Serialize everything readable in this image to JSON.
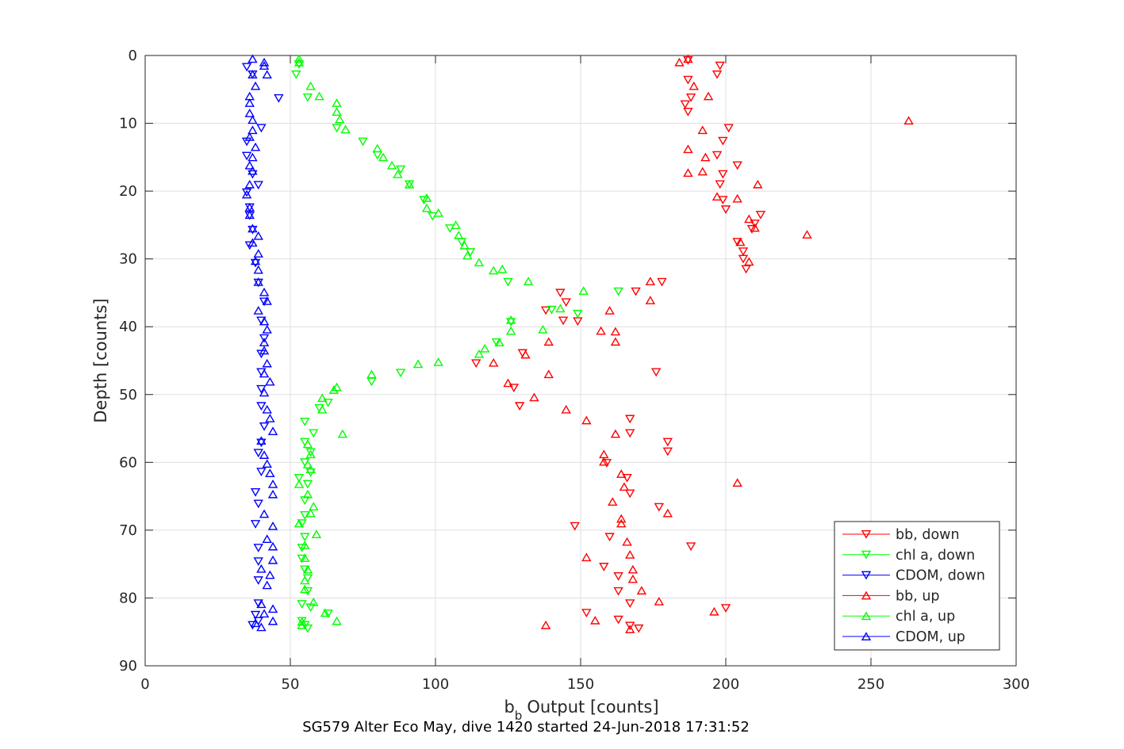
{
  "chart_data": {
    "type": "scatter",
    "xlabel": "Output [counts]",
    "xlabel_prefix": "b",
    "xlabel_subscript": "b",
    "ylabel": "Depth [counts]",
    "caption": "SG579 Alter Eco May, dive 1420 started 24-Jun-2018 17:31:52",
    "xlim": [
      0,
      300
    ],
    "ylim": [
      0,
      90
    ],
    "y_reversed": true,
    "grid": true,
    "legend_position": "bottom-right",
    "xticks": [
      "0",
      "50",
      "100",
      "150",
      "200",
      "250",
      "300"
    ],
    "yticks": [
      "0",
      "10",
      "20",
      "30",
      "40",
      "50",
      "60",
      "70",
      "80",
      "90"
    ],
    "series": [
      {
        "name": "bb, down",
        "color": "#ff0000",
        "marker": "triangle-down",
        "points": [
          [
            187,
            0.7
          ],
          [
            198,
            1.5
          ],
          [
            197,
            2.8
          ],
          [
            187,
            3.6
          ],
          [
            188,
            6.2
          ],
          [
            186,
            7.2
          ],
          [
            187,
            8.3
          ],
          [
            201,
            10.7
          ],
          [
            199,
            12.6
          ],
          [
            197,
            14.7
          ],
          [
            204,
            16.2
          ],
          [
            199,
            17.5
          ],
          [
            198,
            19.0
          ],
          [
            199,
            21.3
          ],
          [
            200,
            22.7
          ],
          [
            212,
            23.5
          ],
          [
            210,
            24.8
          ],
          [
            209,
            25.6
          ],
          [
            204,
            27.5
          ],
          [
            206,
            28.9
          ],
          [
            206,
            30.0
          ],
          [
            207,
            31.5
          ],
          [
            178,
            33.4
          ],
          [
            169,
            34.8
          ],
          [
            143,
            35.0
          ],
          [
            145,
            36.4
          ],
          [
            138,
            37.6
          ],
          [
            149,
            39.2
          ],
          [
            144,
            39.1
          ],
          [
            130,
            43.9
          ],
          [
            114,
            45.4
          ],
          [
            176,
            46.7
          ],
          [
            127,
            49.0
          ],
          [
            129,
            51.7
          ],
          [
            167,
            53.6
          ],
          [
            167,
            55.7
          ],
          [
            180,
            57.0
          ],
          [
            180,
            58.4
          ],
          [
            159,
            60.1
          ],
          [
            166,
            62.3
          ],
          [
            167,
            64.6
          ],
          [
            177,
            66.6
          ],
          [
            148,
            69.4
          ],
          [
            160,
            71.0
          ],
          [
            188,
            72.4
          ],
          [
            158,
            75.4
          ],
          [
            163,
            76.8
          ],
          [
            163,
            79.0
          ],
          [
            167,
            80.8
          ],
          [
            200,
            81.5
          ],
          [
            152,
            82.2
          ],
          [
            163,
            83.2
          ],
          [
            167,
            84.1
          ],
          [
            170,
            84.5
          ]
        ]
      },
      {
        "name": "chl a, down",
        "color": "#00ff00",
        "marker": "triangle-down",
        "points": [
          [
            53,
            1.3
          ],
          [
            52,
            2.8
          ],
          [
            56,
            6.2
          ],
          [
            66,
            10.7
          ],
          [
            75,
            12.7
          ],
          [
            80,
            14.7
          ],
          [
            88,
            16.8
          ],
          [
            91,
            19.0
          ],
          [
            96,
            21.3
          ],
          [
            99,
            23.7
          ],
          [
            105,
            25.5
          ],
          [
            109,
            27.5
          ],
          [
            112,
            29.0
          ],
          [
            125,
            33.4
          ],
          [
            163,
            34.8
          ],
          [
            140,
            37.5
          ],
          [
            149,
            38.1
          ],
          [
            126,
            39.3
          ],
          [
            121,
            42.3
          ],
          [
            88,
            46.8
          ],
          [
            78,
            48.1
          ],
          [
            63,
            51.2
          ],
          [
            60,
            52.0
          ],
          [
            55,
            54.0
          ],
          [
            58,
            55.7
          ],
          [
            55,
            57.0
          ],
          [
            57,
            58.5
          ],
          [
            55,
            60.0
          ],
          [
            57,
            61.5
          ],
          [
            53,
            62.3
          ],
          [
            56,
            63.2
          ],
          [
            55,
            65.6
          ],
          [
            55,
            67.8
          ],
          [
            54,
            69.0
          ],
          [
            55,
            71.0
          ],
          [
            54,
            72.6
          ],
          [
            54,
            74.2
          ],
          [
            55,
            75.8
          ],
          [
            56,
            77.1
          ],
          [
            56,
            79.0
          ],
          [
            54,
            80.9
          ],
          [
            57,
            81.4
          ],
          [
            63,
            82.3
          ],
          [
            54,
            83.4
          ],
          [
            55,
            84.0
          ],
          [
            56,
            84.5
          ]
        ]
      },
      {
        "name": "CDOM, down",
        "color": "#0000ff",
        "marker": "triangle-down",
        "points": [
          [
            35,
            1.7
          ],
          [
            37,
            2.8
          ],
          [
            46,
            6.3
          ],
          [
            40,
            10.7
          ],
          [
            35,
            12.7
          ],
          [
            35,
            14.8
          ],
          [
            37,
            17.5
          ],
          [
            39,
            19.1
          ],
          [
            35,
            20.2
          ],
          [
            36,
            22.4
          ],
          [
            36,
            23.6
          ],
          [
            37,
            25.7
          ],
          [
            36,
            28.0
          ],
          [
            38,
            30.6
          ],
          [
            39,
            33.5
          ],
          [
            41,
            36.3
          ],
          [
            40,
            39.1
          ],
          [
            41,
            41.7
          ],
          [
            40,
            44.0
          ],
          [
            40,
            46.7
          ],
          [
            40,
            49.2
          ],
          [
            40,
            51.7
          ],
          [
            41,
            54.7
          ],
          [
            40,
            57.1
          ],
          [
            39,
            58.6
          ],
          [
            40,
            61.4
          ],
          [
            38,
            64.4
          ],
          [
            39,
            66.1
          ],
          [
            38,
            69.1
          ],
          [
            39,
            72.6
          ],
          [
            39,
            74.6
          ],
          [
            39,
            77.4
          ],
          [
            39,
            80.8
          ],
          [
            38,
            82.5
          ],
          [
            39,
            83.4
          ],
          [
            37,
            84.0
          ]
        ]
      },
      {
        "name": "bb, up",
        "color": "#ff0000",
        "marker": "triangle-up",
        "points": [
          [
            187,
            0.5
          ],
          [
            184,
            1.0
          ],
          [
            189,
            4.5
          ],
          [
            194,
            6.0
          ],
          [
            263,
            9.6
          ],
          [
            192,
            11.0
          ],
          [
            187,
            13.8
          ],
          [
            193,
            15.0
          ],
          [
            187,
            17.3
          ],
          [
            192,
            17.1
          ],
          [
            211,
            19.0
          ],
          [
            197,
            20.8
          ],
          [
            204,
            21.1
          ],
          [
            208,
            24.1
          ],
          [
            210,
            25.4
          ],
          [
            228,
            26.4
          ],
          [
            205,
            27.5
          ],
          [
            208,
            30.4
          ],
          [
            174,
            33.3
          ],
          [
            174,
            36.1
          ],
          [
            160,
            37.6
          ],
          [
            157,
            40.6
          ],
          [
            162,
            40.7
          ],
          [
            162,
            42.2
          ],
          [
            139,
            42.2
          ],
          [
            131,
            44.1
          ],
          [
            120,
            45.3
          ],
          [
            139,
            47.0
          ],
          [
            125,
            48.3
          ],
          [
            134,
            50.4
          ],
          [
            145,
            52.2
          ],
          [
            152,
            53.8
          ],
          [
            162,
            55.8
          ],
          [
            158,
            58.8
          ],
          [
            158,
            59.9
          ],
          [
            164,
            61.7
          ],
          [
            165,
            63.6
          ],
          [
            161,
            65.8
          ],
          [
            180,
            67.5
          ],
          [
            164,
            68.3
          ],
          [
            164,
            69.0
          ],
          [
            166,
            71.7
          ],
          [
            167,
            73.6
          ],
          [
            152,
            74.0
          ],
          [
            168,
            75.8
          ],
          [
            204,
            63.0
          ],
          [
            168,
            77.2
          ],
          [
            171,
            78.9
          ],
          [
            177,
            80.5
          ],
          [
            196,
            82.0
          ],
          [
            155,
            83.3
          ],
          [
            138,
            84.0
          ],
          [
            167,
            84.6
          ]
        ]
      },
      {
        "name": "chl a, up",
        "color": "#00ff00",
        "marker": "triangle-up",
        "points": [
          [
            53,
            0.5
          ],
          [
            53,
            1.0
          ],
          [
            57,
            4.5
          ],
          [
            60,
            6.0
          ],
          [
            66,
            7.0
          ],
          [
            66,
            8.3
          ],
          [
            67,
            9.4
          ],
          [
            69,
            10.9
          ],
          [
            80,
            13.7
          ],
          [
            82,
            15.0
          ],
          [
            85,
            16.2
          ],
          [
            87,
            17.5
          ],
          [
            91,
            19.0
          ],
          [
            97,
            21.0
          ],
          [
            97,
            22.5
          ],
          [
            101,
            23.2
          ],
          [
            107,
            25.0
          ],
          [
            108,
            26.5
          ],
          [
            110,
            28.0
          ],
          [
            111,
            29.5
          ],
          [
            115,
            30.5
          ],
          [
            123,
            31.5
          ],
          [
            120,
            31.7
          ],
          [
            132,
            33.3
          ],
          [
            151,
            34.7
          ],
          [
            143,
            37.3
          ],
          [
            126,
            39.0
          ],
          [
            137,
            40.4
          ],
          [
            126,
            40.6
          ],
          [
            122,
            42.3
          ],
          [
            117,
            43.2
          ],
          [
            115,
            44.0
          ],
          [
            101,
            45.2
          ],
          [
            94,
            45.5
          ],
          [
            78,
            47.0
          ],
          [
            66,
            48.9
          ],
          [
            65,
            49.3
          ],
          [
            61,
            50.5
          ],
          [
            61,
            52.2
          ],
          [
            68,
            55.8
          ],
          [
            56,
            57.3
          ],
          [
            57,
            58.8
          ],
          [
            56,
            60.3
          ],
          [
            57,
            61.0
          ],
          [
            53,
            63.2
          ],
          [
            56,
            64.7
          ],
          [
            58,
            66.5
          ],
          [
            57,
            67.5
          ],
          [
            53,
            69.0
          ],
          [
            59,
            70.6
          ],
          [
            55,
            72.2
          ],
          [
            55,
            74.1
          ],
          [
            56,
            75.8
          ],
          [
            55,
            77.4
          ],
          [
            55,
            78.7
          ],
          [
            58,
            80.6
          ],
          [
            62,
            82.2
          ],
          [
            66,
            83.4
          ],
          [
            54,
            83.5
          ],
          [
            54,
            84.0
          ]
        ]
      },
      {
        "name": "CDOM, up",
        "color": "#0000ff",
        "marker": "triangle-up",
        "points": [
          [
            37,
            0.5
          ],
          [
            41,
            1.0
          ],
          [
            41,
            1.5
          ],
          [
            37,
            2.8
          ],
          [
            42,
            2.8
          ],
          [
            38,
            4.5
          ],
          [
            36,
            6.0
          ],
          [
            36,
            7.0
          ],
          [
            36,
            8.5
          ],
          [
            37,
            9.5
          ],
          [
            37,
            11.0
          ],
          [
            36,
            12.0
          ],
          [
            38,
            13.5
          ],
          [
            37,
            15.0
          ],
          [
            36,
            16.2
          ],
          [
            37,
            17.0
          ],
          [
            36,
            19.0
          ],
          [
            35,
            20.5
          ],
          [
            36,
            22.4
          ],
          [
            36,
            23.5
          ],
          [
            37,
            25.5
          ],
          [
            39,
            26.6
          ],
          [
            37,
            27.6
          ],
          [
            39,
            29.2
          ],
          [
            38,
            30.3
          ],
          [
            39,
            31.6
          ],
          [
            39,
            33.4
          ],
          [
            41,
            34.9
          ],
          [
            42,
            36.2
          ],
          [
            39,
            37.6
          ],
          [
            41,
            39.2
          ],
          [
            42,
            40.4
          ],
          [
            41,
            42.3
          ],
          [
            41,
            43.5
          ],
          [
            42,
            45.4
          ],
          [
            41,
            46.9
          ],
          [
            43,
            48.1
          ],
          [
            41,
            49.7
          ],
          [
            42,
            52.2
          ],
          [
            43,
            53.5
          ],
          [
            44,
            55.4
          ],
          [
            40,
            56.8
          ],
          [
            41,
            58.9
          ],
          [
            42,
            60.2
          ],
          [
            43,
            61.6
          ],
          [
            44,
            63.2
          ],
          [
            44,
            64.7
          ],
          [
            41,
            67.6
          ],
          [
            44,
            69.4
          ],
          [
            42,
            71.3
          ],
          [
            44,
            72.4
          ],
          [
            44,
            74.4
          ],
          [
            40,
            75.7
          ],
          [
            43,
            76.6
          ],
          [
            42,
            78.1
          ],
          [
            40,
            80.9
          ],
          [
            44,
            81.6
          ],
          [
            41,
            82.3
          ],
          [
            44,
            83.4
          ],
          [
            38,
            83.7
          ],
          [
            40,
            84.3
          ]
        ]
      }
    ]
  }
}
